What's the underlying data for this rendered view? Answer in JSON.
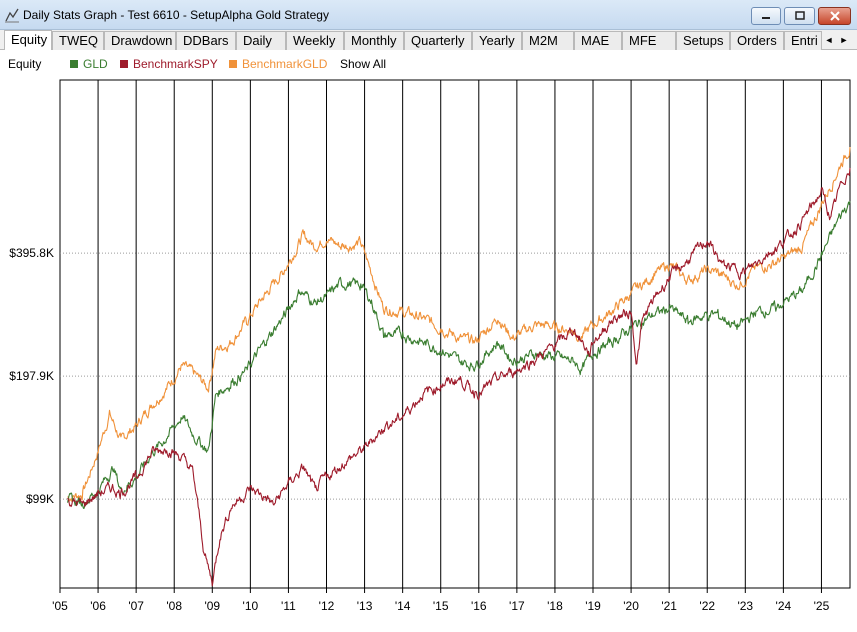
{
  "window": {
    "title": "Daily Stats Graph - Test 6610 - SetupAlpha Gold Strategy"
  },
  "tabs": [
    "Equity",
    "TWEQ",
    "Drawdown",
    "DDBars",
    "Daily",
    "Weekly",
    "Monthly",
    "Quarterly",
    "Yearly",
    "M2M",
    "MAE",
    "MFE",
    "Setups",
    "Orders",
    "Entri"
  ],
  "active_tab": "Equity",
  "legend": {
    "title": "Equity",
    "items": [
      {
        "label": "GLD",
        "color": "#3a7d30"
      },
      {
        "label": "BenchmarkSPY",
        "color": "#9e1b2b"
      },
      {
        "label": "BenchmarkGLD",
        "color": "#f0923a"
      }
    ],
    "show_all": "Show All"
  },
  "chart_data": {
    "type": "line",
    "y_scale": "log",
    "y_tick_labels": [
      "$395.8K",
      "$197.9K",
      "$99K"
    ],
    "y_tick_values": [
      395800,
      197900,
      99000
    ],
    "x_tick_labels": [
      "'05",
      "'06",
      "'07",
      "'08",
      "'09",
      "'10",
      "'11",
      "'12",
      "'13",
      "'14",
      "'15",
      "'16",
      "'17",
      "'18",
      "'19",
      "'20",
      "'21",
      "'22",
      "'23",
      "'24",
      "'25"
    ],
    "x_range": [
      2005.0,
      2025.75
    ],
    "ylim": [
      60000,
      1050000
    ],
    "series": [
      {
        "name": "GLD",
        "color": "#3a7d30",
        "x": [
          2005.2,
          2005.6,
          2006.0,
          2006.4,
          2006.6,
          2007.0,
          2007.4,
          2007.8,
          2008.2,
          2008.6,
          2008.9,
          2009.1,
          2009.5,
          2009.9,
          2010.4,
          2010.9,
          2011.3,
          2011.7,
          2012.0,
          2012.4,
          2012.9,
          2013.2,
          2013.5,
          2014.0,
          2014.5,
          2015.0,
          2015.5,
          2015.9,
          2016.5,
          2016.9,
          2017.5,
          2018.0,
          2018.5,
          2018.7,
          2019.0,
          2019.5,
          2020.0,
          2020.6,
          2021.0,
          2021.5,
          2022.0,
          2022.3,
          2022.8,
          2023.3,
          2023.8,
          2024.0,
          2024.5,
          2025.0,
          2025.5,
          2025.75
        ],
        "y": [
          98000,
          97000,
          104000,
          118000,
          104000,
          112000,
          128000,
          140000,
          158000,
          138000,
          130000,
          180000,
          190000,
          205000,
          240000,
          280000,
          320000,
          300000,
          310000,
          335000,
          330000,
          300000,
          250000,
          250000,
          240000,
          230000,
          215000,
          210000,
          240000,
          215000,
          225000,
          220000,
          215000,
          205000,
          225000,
          240000,
          260000,
          280000,
          290000,
          270000,
          280000,
          280000,
          260000,
          285000,
          290000,
          300000,
          320000,
          390000,
          490000,
          530000
        ]
      },
      {
        "name": "BenchmarkSPY",
        "color": "#9e1b2b",
        "x": [
          2005.2,
          2005.6,
          2006.0,
          2006.4,
          2006.6,
          2007.0,
          2007.4,
          2007.8,
          2008.2,
          2008.5,
          2008.8,
          2009.0,
          2009.2,
          2009.5,
          2010.0,
          2010.4,
          2010.6,
          2011.0,
          2011.4,
          2011.7,
          2012.0,
          2012.5,
          2013.0,
          2013.5,
          2014.0,
          2014.5,
          2015.0,
          2015.5,
          2015.9,
          2016.1,
          2016.5,
          2017.0,
          2017.5,
          2018.0,
          2018.5,
          2018.9,
          2019.0,
          2019.5,
          2020.0,
          2020.15,
          2020.3,
          2020.6,
          2021.0,
          2021.5,
          2022.0,
          2022.4,
          2022.8,
          2023.0,
          2023.5,
          2024.0,
          2024.5,
          2025.0,
          2025.25,
          2025.5,
          2025.75
        ],
        "y": [
          98000,
          96000,
          102000,
          106000,
          102000,
          112000,
          128000,
          132000,
          125000,
          115000,
          72000,
          62000,
          80000,
          95000,
          105000,
          100000,
          96000,
          108000,
          118000,
          104000,
          112000,
          122000,
          132000,
          148000,
          158000,
          178000,
          188000,
          195000,
          180000,
          182000,
          195000,
          205000,
          218000,
          235000,
          258000,
          225000,
          240000,
          272000,
          285000,
          210000,
          272000,
          305000,
          345000,
          380000,
          425000,
          370000,
          360000,
          355000,
          390000,
          420000,
          475000,
          560000,
          480000,
          580000,
          640000
        ]
      },
      {
        "name": "BenchmarkGLD",
        "color": "#f0923a",
        "x": [
          2005.2,
          2005.6,
          2006.0,
          2006.3,
          2006.6,
          2007.0,
          2007.4,
          2007.8,
          2008.2,
          2008.6,
          2008.9,
          2009.1,
          2009.5,
          2009.9,
          2010.4,
          2010.9,
          2011.4,
          2011.7,
          2012.0,
          2012.4,
          2012.9,
          2013.2,
          2013.5,
          2014.0,
          2014.5,
          2015.0,
          2015.5,
          2015.9,
          2016.5,
          2016.9,
          2017.5,
          2018.0,
          2018.5,
          2018.7,
          2019.0,
          2019.5,
          2020.0,
          2020.6,
          2021.0,
          2021.5,
          2022.0,
          2022.3,
          2022.8,
          2023.3,
          2023.8,
          2024.0,
          2024.5,
          2025.0,
          2025.5,
          2025.75
        ],
        "y": [
          100000,
          102000,
          130000,
          160000,
          138000,
          150000,
          168000,
          185000,
          210000,
          198000,
          185000,
          230000,
          240000,
          270000,
          315000,
          360000,
          440000,
          410000,
          430000,
          410000,
          420000,
          350000,
          290000,
          285000,
          275000,
          260000,
          245000,
          240000,
          275000,
          245000,
          265000,
          262000,
          255000,
          245000,
          265000,
          285000,
          315000,
          350000,
          370000,
          340000,
          360000,
          355000,
          330000,
          365000,
          375000,
          385000,
          410000,
          520000,
          650000,
          720000
        ]
      }
    ]
  }
}
